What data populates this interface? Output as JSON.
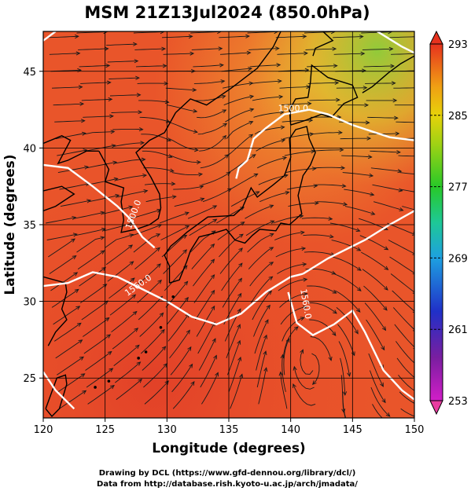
{
  "chart_data": {
    "type": "heatmap",
    "title": "MSM 21Z13Jul2024 (850.0hPa)",
    "xlabel": "Longitude (degrees)",
    "ylabel": "Latitude  (degrees)",
    "xlim": [
      120,
      150
    ],
    "ylim": [
      22.4,
      47.6
    ],
    "x_ticks": [
      "120",
      "125",
      "130",
      "135",
      "140",
      "145",
      "150"
    ],
    "y_ticks": [
      "25",
      "30",
      "35",
      "40",
      "45"
    ],
    "grid": true,
    "colorbar": {
      "min": 253,
      "max": 293,
      "ticks": [
        "253",
        "261",
        "269",
        "277",
        "285",
        "293"
      ]
    },
    "contours": [
      {
        "label": "1500.0",
        "lon": 140.2,
        "lat": 42.4
      },
      {
        "label": "1500.0",
        "lon": 127.5,
        "lat": 35.6
      },
      {
        "label": "1560.0",
        "lon": 127.8,
        "lat": 30.9
      },
      {
        "label": "1560.0",
        "lon": 141.0,
        "lat": 29.8
      }
    ]
  },
  "credits": {
    "line1": "Drawing by DCL (https://www.gfd-dennou.org/library/dcl/)",
    "line2": "Data from http://database.rish.kyoto-u.ac.jp/arch/jmadata/"
  }
}
